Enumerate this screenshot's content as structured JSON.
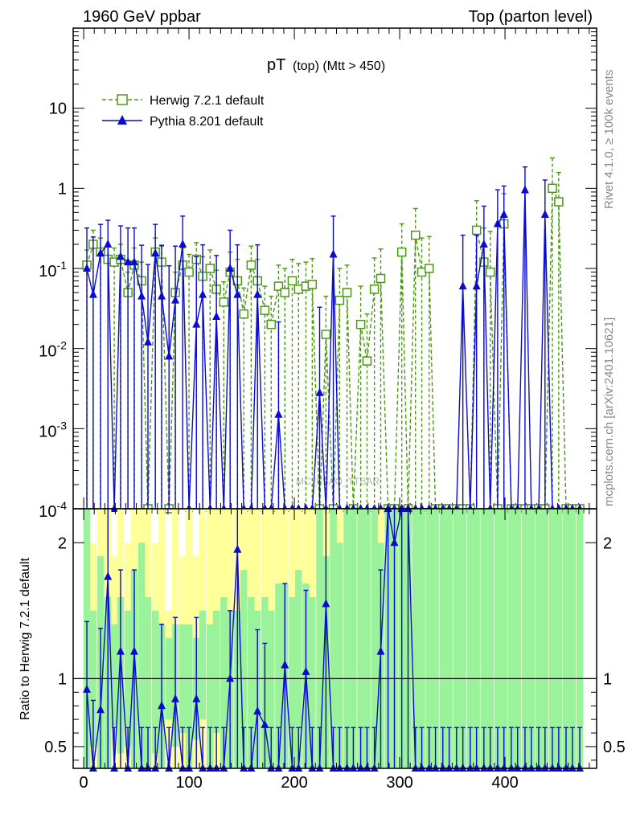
{
  "header": {
    "left": "1960 GeV ppbar",
    "right": "Top (parton level)"
  },
  "title": {
    "main": "pT",
    "sub": "(top) (Mtt > 450)"
  },
  "side_labels": {
    "rivet": "Rivet 4.1.0, ≥ 100k events",
    "mcplots": "mcplots.cern.ch [arXiv:2401.10621]"
  },
  "watermark": "MC_FSAO_TTBAR",
  "ratio_ylabel": "Ratio to Herwig 7.2.1 default",
  "colors": {
    "herwig": "#4a9a0f",
    "pythia": "#0a0ad2",
    "band_yellow": "#ffff99",
    "band_green": "#9af39a"
  },
  "chart_data": [
    {
      "type": "scatter",
      "panel": "main",
      "title": "pT (top) (Mtt > 450)",
      "xlabel": "",
      "ylabel": "",
      "yscale": "log",
      "xlim": [
        -10,
        487
      ],
      "ylim": [
        0.0001,
        100
      ],
      "y_tick_labels": [
        "10",
        "1",
        "10^-1",
        "10^-2",
        "10^-3",
        "10^-4"
      ],
      "legend": {
        "placement": "top-left",
        "entries": [
          "Herwig 7.2.1 default",
          "Pythia 8.201 default"
        ]
      },
      "series": [
        {
          "name": "Herwig 7.2.1 default",
          "marker": "open-square",
          "line": "dashed",
          "x": [
            3,
            9,
            16,
            23,
            29,
            35,
            42,
            48,
            55,
            61,
            68,
            74,
            81,
            87,
            94,
            100,
            107,
            113,
            120,
            126,
            133,
            139,
            146,
            152,
            159,
            165,
            172,
            178,
            185,
            191,
            198,
            204,
            211,
            217,
            224,
            230,
            237,
            243,
            250,
            256,
            263,
            269,
            276,
            282,
            289,
            295,
            302,
            308,
            315,
            321,
            328,
            334,
            341,
            347,
            354,
            360,
            367,
            373,
            380,
            386,
            393,
            399,
            406,
            412,
            419,
            425,
            432,
            438,
            445,
            451,
            458,
            464,
            471
          ],
          "y": [
            0.11,
            0.2,
            0.16,
            0.13,
            0.12,
            0.13,
            0.05,
            0.11,
            0.07,
            0.0001,
            0.16,
            0.12,
            0.0001,
            0.05,
            0.11,
            0.09,
            0.13,
            0.08,
            0.1,
            0.055,
            0.038,
            0.09,
            0.07,
            0.027,
            0.11,
            0.07,
            0.03,
            0.02,
            0.06,
            0.05,
            0.07,
            0.055,
            0.06,
            0.063,
            0.0001,
            0.015,
            0.0001,
            0.04,
            0.05,
            0.0001,
            0.02,
            0.007,
            0.055,
            0.075,
            0.0001,
            0.0001,
            0.16,
            0.0001,
            0.26,
            0.09,
            0.1,
            0.0001,
            0.0001,
            0.0001,
            0.0001,
            0.0001,
            0.0001,
            0.3,
            0.12,
            0.09,
            0.0001,
            0.36,
            0.0001,
            0.0001,
            0.0001,
            0.0001,
            0.0001,
            0.0001,
            1.0,
            0.68,
            0.0001,
            0.0001,
            0.0001
          ],
          "y_err_up": [
            0.06,
            0.1,
            0.08,
            0.06,
            0.06,
            0.07,
            0.04,
            0.07,
            0.05,
            0,
            0.08,
            0.07,
            0,
            0.04,
            0.07,
            0.06,
            0.08,
            0.06,
            0.07,
            0.04,
            0.03,
            0.07,
            0.06,
            0.03,
            0.08,
            0.06,
            0.03,
            0.025,
            0.05,
            0.05,
            0.06,
            0.06,
            0.06,
            0.07,
            0,
            0.03,
            0,
            0.06,
            0.06,
            0,
            0.04,
            0.02,
            0.08,
            0.1,
            0,
            0,
            0.2,
            0,
            0.3,
            0.15,
            0.15,
            0,
            0,
            0,
            0,
            0,
            0,
            0.4,
            0.2,
            0.2,
            0,
            0.5,
            0,
            0,
            0,
            0,
            0,
            0,
            1.4,
            0.9,
            0,
            0,
            0
          ]
        },
        {
          "name": "Pythia 8.201 default",
          "marker": "filled-triangle",
          "line": "solid",
          "x": [
            3,
            9,
            16,
            23,
            29,
            35,
            42,
            48,
            55,
            61,
            68,
            74,
            81,
            87,
            94,
            100,
            107,
            113,
            120,
            126,
            133,
            139,
            146,
            152,
            159,
            165,
            172,
            178,
            185,
            191,
            198,
            204,
            211,
            217,
            224,
            230,
            237,
            243,
            250,
            256,
            263,
            269,
            276,
            282,
            289,
            295,
            302,
            308,
            315,
            321,
            328,
            334,
            341,
            347,
            354,
            360,
            367,
            373,
            380,
            386,
            393,
            399,
            406,
            412,
            419,
            425,
            432,
            438,
            445,
            451,
            458,
            464,
            471
          ],
          "y": [
            0.1,
            0.047,
            0.155,
            0.2,
            0.0001,
            0.14,
            0.12,
            0.12,
            0.045,
            0.012,
            0.155,
            0.045,
            0.008,
            0.04,
            0.2,
            0.0001,
            0.02,
            0.047,
            0.0001,
            0.025,
            0.0001,
            0.1,
            0.047,
            0.0001,
            0.0001,
            0.047,
            0.0001,
            0.0001,
            0.0015,
            0.0001,
            0.0001,
            0.0001,
            0.0001,
            0.0001,
            0.0028,
            0.0001,
            0.15,
            0.0001,
            0.0001,
            0.0001,
            0.0001,
            0.0001,
            0.0001,
            0.0001,
            0.0001,
            0.0001,
            0.0001,
            0.0001,
            0.0001,
            0.0001,
            0.0001,
            0.0001,
            0.0001,
            0.0001,
            0.0001,
            0.06,
            0.0001,
            0.06,
            0.2,
            0.0001,
            0.36,
            0.47,
            0.0001,
            0.0001,
            0.95,
            0.0001,
            0.0001,
            0.47,
            0.0001,
            0.0001,
            0.0001,
            0.0001,
            0.0001
          ],
          "y_err_up": [
            0.22,
            0.2,
            0.2,
            0.2,
            0,
            0.2,
            0.2,
            0.2,
            0.15,
            0.1,
            0.2,
            0.15,
            0.1,
            0.15,
            0.25,
            0,
            0.12,
            0.15,
            0,
            0.12,
            0,
            0.2,
            0.15,
            0,
            0,
            0.15,
            0,
            0,
            0.02,
            0,
            0,
            0,
            0,
            0,
            0.03,
            0,
            0.3,
            0,
            0,
            0,
            0,
            0,
            0,
            0,
            0,
            0,
            0,
            0,
            0,
            0,
            0,
            0,
            0,
            0,
            0,
            0.2,
            0,
            0.2,
            0.4,
            0,
            0.6,
            0.6,
            0,
            0,
            0.9,
            0,
            0,
            0.8,
            0,
            0,
            0,
            0,
            0
          ]
        }
      ]
    },
    {
      "type": "line",
      "panel": "ratio",
      "xlabel": "",
      "ylabel": "Ratio to Herwig 7.2.1 default",
      "xlim": [
        -10,
        487
      ],
      "ylim": [
        0.34,
        2.25
      ],
      "y_ticks": [
        0.5,
        1,
        2
      ],
      "y_tick_labels": [
        "0.5",
        "1",
        "2"
      ],
      "x_ticks": [
        0,
        100,
        200,
        300,
        400
      ],
      "x_tick_labels": [
        "0",
        "100",
        "200",
        "300",
        "400"
      ],
      "reference_line": 1,
      "bands": {
        "x": [
          3,
          9,
          16,
          23,
          29,
          35,
          42,
          48,
          55,
          61,
          68,
          74,
          81,
          87,
          94,
          100,
          107,
          113,
          120,
          126,
          133,
          139,
          146,
          152,
          159,
          165,
          172,
          178,
          185,
          191,
          198,
          204,
          211,
          217,
          224,
          230,
          237,
          243,
          250,
          256,
          263,
          269,
          276,
          282,
          289,
          295,
          302,
          308,
          315,
          321,
          328,
          334,
          341,
          347,
          354,
          360,
          367,
          373,
          380,
          386,
          393,
          399,
          406,
          412,
          419,
          425,
          432,
          438,
          445,
          451,
          458,
          464,
          471
        ],
        "yellow_lo": [
          0.34,
          0.34,
          0.34,
          0.34,
          0.5,
          0.34,
          0.34,
          0.34,
          0.34,
          0.34,
          0.34,
          0.34,
          0.5,
          0.34,
          0.34,
          0.34,
          0.34,
          0.34,
          0.34,
          0.34,
          0.34,
          0.34,
          0.34,
          0.34,
          0.34,
          0.34,
          0.34,
          0.34,
          0.34,
          0.34,
          0.34,
          0.34,
          0.34,
          0.34,
          0.34,
          0.34,
          0.34,
          0.34,
          0.34,
          0.34,
          0.34,
          0.34,
          0.34,
          0.34,
          0.34,
          0.34,
          0.34,
          0.34,
          0.34,
          0.34,
          0.34,
          0.34,
          0.34,
          0.34,
          0.34,
          0.34,
          0.34,
          0.34,
          0.34,
          0.34,
          0.34,
          0.34,
          0.34,
          0.34,
          0.34,
          0.34,
          0.34,
          0.34,
          0.34,
          0.34,
          0.34,
          0.34,
          0.34
        ],
        "yellow_hi": [
          2.25,
          2.0,
          2.25,
          2.25,
          1.9,
          2.25,
          2.0,
          2.25,
          2.25,
          2.25,
          2.0,
          2.25,
          1.5,
          2.25,
          1.9,
          2.25,
          1.9,
          2.25,
          2.25,
          2.25,
          2.25,
          2.25,
          2.25,
          2.25,
          2.25,
          2.25,
          2.25,
          2.25,
          2.25,
          2.25,
          2.25,
          2.25,
          2.25,
          2.25,
          2.25,
          2.25,
          2.25,
          2.25,
          2.25,
          2.25,
          2.25,
          2.25,
          2.25,
          2.25,
          2.25,
          2.25,
          2.25,
          2.25,
          2.25,
          2.25,
          2.25,
          2.25,
          2.25,
          2.25,
          2.25,
          2.25,
          2.25,
          2.25,
          2.25,
          2.25,
          2.25,
          2.25,
          2.25,
          2.25,
          2.25,
          2.25,
          2.25,
          2.25,
          2.25,
          2.25,
          2.25,
          2.25,
          2.25
        ],
        "green_lo": [
          0.34,
          0.5,
          0.34,
          0.34,
          0.65,
          0.45,
          0.5,
          0.34,
          0.34,
          0.34,
          0.45,
          0.34,
          0.7,
          0.5,
          0.6,
          0.34,
          0.55,
          0.7,
          0.34,
          0.6,
          0.34,
          0.34,
          0.34,
          0.34,
          0.34,
          0.34,
          0.34,
          0.34,
          0.34,
          0.34,
          0.34,
          0.34,
          0.34,
          0.34,
          0.34,
          0.34,
          0.34,
          0.34,
          0.34,
          0.34,
          0.34,
          0.34,
          0.34,
          0.34,
          0.34,
          0.34,
          0.34,
          0.34,
          0.34,
          0.34,
          0.34,
          0.34,
          0.34,
          0.34,
          0.34,
          0.34,
          0.34,
          0.34,
          0.34,
          0.34,
          0.34,
          0.34,
          0.34,
          0.34,
          0.34,
          0.34,
          0.34,
          0.34,
          0.34,
          0.34,
          0.34,
          0.34,
          0.34
        ],
        "green_hi": [
          2.25,
          1.5,
          1.9,
          1.6,
          1.4,
          1.6,
          1.5,
          1.8,
          2.0,
          1.6,
          1.5,
          1.4,
          1.3,
          1.4,
          1.4,
          1.4,
          1.3,
          1.5,
          1.4,
          1.5,
          1.6,
          1.5,
          1.5,
          1.8,
          1.6,
          1.5,
          1.6,
          1.5,
          1.7,
          1.7,
          1.6,
          1.8,
          1.7,
          1.6,
          2.25,
          1.9,
          2.25,
          2.0,
          2.25,
          2.25,
          2.25,
          2.25,
          2.25,
          2.0,
          2.25,
          2.25,
          2.25,
          2.25,
          2.25,
          2.25,
          2.25,
          2.25,
          2.25,
          2.25,
          2.25,
          2.25,
          2.25,
          2.25,
          2.25,
          2.25,
          2.25,
          2.25,
          2.25,
          2.25,
          2.25,
          2.25,
          2.25,
          2.25,
          2.25,
          2.25,
          2.25,
          2.25,
          2.25
        ]
      },
      "series": [
        {
          "name": "Pythia 8.201 default",
          "x": [
            3,
            9,
            16,
            23,
            29,
            35,
            42,
            48,
            55,
            61,
            68,
            74,
            81,
            87,
            94,
            100,
            107,
            113,
            120,
            126,
            133,
            139,
            146,
            152,
            159,
            165,
            172,
            178,
            185,
            191,
            198,
            204,
            211,
            217,
            224,
            230,
            237,
            243,
            250,
            256,
            263,
            269,
            276,
            282,
            289,
            295,
            302,
            308,
            315,
            321,
            328,
            334,
            341,
            347,
            354,
            360,
            367,
            373,
            380,
            386,
            393,
            399,
            406,
            412,
            419,
            425,
            432,
            438,
            445,
            451,
            458,
            464,
            471
          ],
          "y": [
            0.92,
            0.34,
            0.77,
            1.75,
            0.34,
            1.2,
            0.34,
            1.2,
            0.34,
            0.34,
            0.34,
            0.8,
            0.34,
            0.85,
            0.34,
            0.34,
            0.85,
            0.34,
            0.34,
            0.34,
            0.34,
            1.0,
            1.95,
            0.34,
            0.34,
            0.76,
            0.66,
            0.34,
            0.34,
            1.1,
            0.34,
            0.34,
            1.05,
            0.34,
            0.34,
            1.55,
            0.34,
            0.34,
            0.34,
            0.34,
            0.34,
            0.34,
            0.34,
            1.2,
            2.35,
            2.0,
            2.35,
            2.35,
            0.34,
            0.34,
            0.34,
            0.34,
            0.34,
            0.34,
            0.34,
            0.34,
            0.34,
            0.34,
            0.34,
            0.34,
            0.34,
            0.34,
            0.34,
            0.34,
            0.34,
            0.34,
            0.34,
            0.34,
            0.34,
            0.34,
            0.34,
            0.34,
            0.34
          ],
          "y_err_up": [
            0.5,
            0.5,
            0.6,
            0.8,
            0.3,
            0.6,
            0.3,
            0.6,
            0.3,
            0.3,
            0.3,
            0.6,
            0.3,
            0.6,
            0.3,
            0.3,
            0.6,
            0.3,
            0.3,
            0.3,
            0.3,
            0.5,
            0.7,
            0.3,
            0.3,
            0.6,
            0.6,
            0.3,
            0.3,
            0.6,
            0.3,
            0.3,
            0.6,
            0.3,
            0.3,
            0.7,
            0.3,
            0.3,
            0.3,
            0.3,
            0.3,
            0.3,
            0.3,
            0.6,
            0.5,
            0.5,
            0.5,
            0.5,
            0.3,
            0.3,
            0.3,
            0.3,
            0.3,
            0.3,
            0.3,
            0.3,
            0.3,
            0.3,
            0.3,
            0.3,
            0.3,
            0.3,
            0.3,
            0.3,
            0.3,
            0.3,
            0.3,
            0.3,
            0.3,
            0.3,
            0.3,
            0.3,
            0.3
          ]
        }
      ]
    }
  ]
}
